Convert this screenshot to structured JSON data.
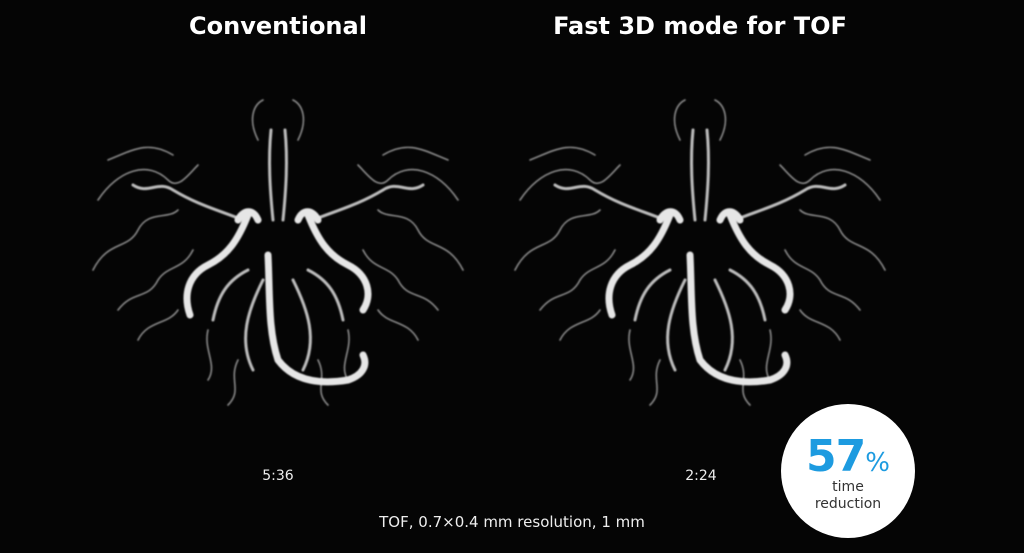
{
  "panels": [
    {
      "title": "Conventional",
      "time": "5:36"
    },
    {
      "title": "Fast 3D mode for TOF",
      "time": "2:24"
    }
  ],
  "caption": "TOF, 0.7×0.4 mm resolution, 1 mm",
  "badge": {
    "value": "57",
    "unit": "%",
    "line1": "time",
    "line2": "reduction",
    "accent_color": "#1d9be0"
  }
}
